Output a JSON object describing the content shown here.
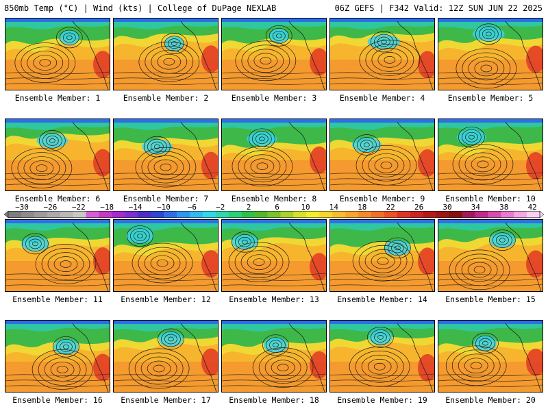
{
  "header": {
    "left_title": "850mb Temp (°C) | Wind (kts) | College of DuPage NEXLAB",
    "right_title": "06Z GEFS | F342 Valid: 12Z SUN JUN 22 2025"
  },
  "panels": [
    {
      "label": "Ensemble Member: 1"
    },
    {
      "label": "Ensemble Member: 2"
    },
    {
      "label": "Ensemble Member: 3"
    },
    {
      "label": "Ensemble Member: 4"
    },
    {
      "label": "Ensemble Member: 5"
    },
    {
      "label": "Ensemble Member: 6"
    },
    {
      "label": "Ensemble Member: 7"
    },
    {
      "label": "Ensemble Member: 8"
    },
    {
      "label": "Ensemble Member: 9"
    },
    {
      "label": "Ensemble Member: 10"
    },
    {
      "label": "Ensemble Member: 11"
    },
    {
      "label": "Ensemble Member: 12"
    },
    {
      "label": "Ensemble Member: 13"
    },
    {
      "label": "Ensemble Member: 14"
    },
    {
      "label": "Ensemble Member: 15"
    },
    {
      "label": "Ensemble Member: 16"
    },
    {
      "label": "Ensemble Member: 17"
    },
    {
      "label": "Ensemble Member: 18"
    },
    {
      "label": "Ensemble Member: 19"
    },
    {
      "label": "Ensemble Member: 20"
    }
  ],
  "colorbar": {
    "labels": [
      "−30",
      "−26",
      "−22",
      "−18",
      "−14",
      "−10",
      "−6",
      "−2",
      "2",
      "6",
      "10",
      "14",
      "18",
      "22",
      "26",
      "30",
      "34",
      "38",
      "42"
    ],
    "colors": [
      "#7d7d7d",
      "#8c8c8c",
      "#9b9b9b",
      "#aaaaaa",
      "#b9b9b9",
      "#c8c8c8",
      "#d65fd6",
      "#c43ac4",
      "#a52ad0",
      "#7a2fd0",
      "#4b2dc8",
      "#2d46d6",
      "#2f6fe6",
      "#2f95f0",
      "#33b8f2",
      "#33d8e6",
      "#2fd6b0",
      "#2ecf7a",
      "#2fbf4a",
      "#4fb82e",
      "#7cc22e",
      "#a8d22e",
      "#d6e22e",
      "#f2ee2e",
      "#f7d72e",
      "#f7bd2e",
      "#f7a52e",
      "#f48a2c",
      "#ef6f2a",
      "#e85228",
      "#dc3526",
      "#c92424",
      "#b31b1b",
      "#9c1414",
      "#861010",
      "#a21a5a",
      "#c02a8a",
      "#d84bb0",
      "#e97ad0",
      "#f2a8e2",
      "#f8d2f0"
    ],
    "map_colors": {
      "warm": "#f49a2e",
      "orange": "#f7b52e",
      "yellow": "#f0d834",
      "lime": "#a8d22e",
      "green": "#3fb84a",
      "teal": "#2fc7a0",
      "cyan": "#38d3e8",
      "blue": "#2f6fe6",
      "hot": "#e23a24",
      "land_line": "#222222"
    }
  }
}
